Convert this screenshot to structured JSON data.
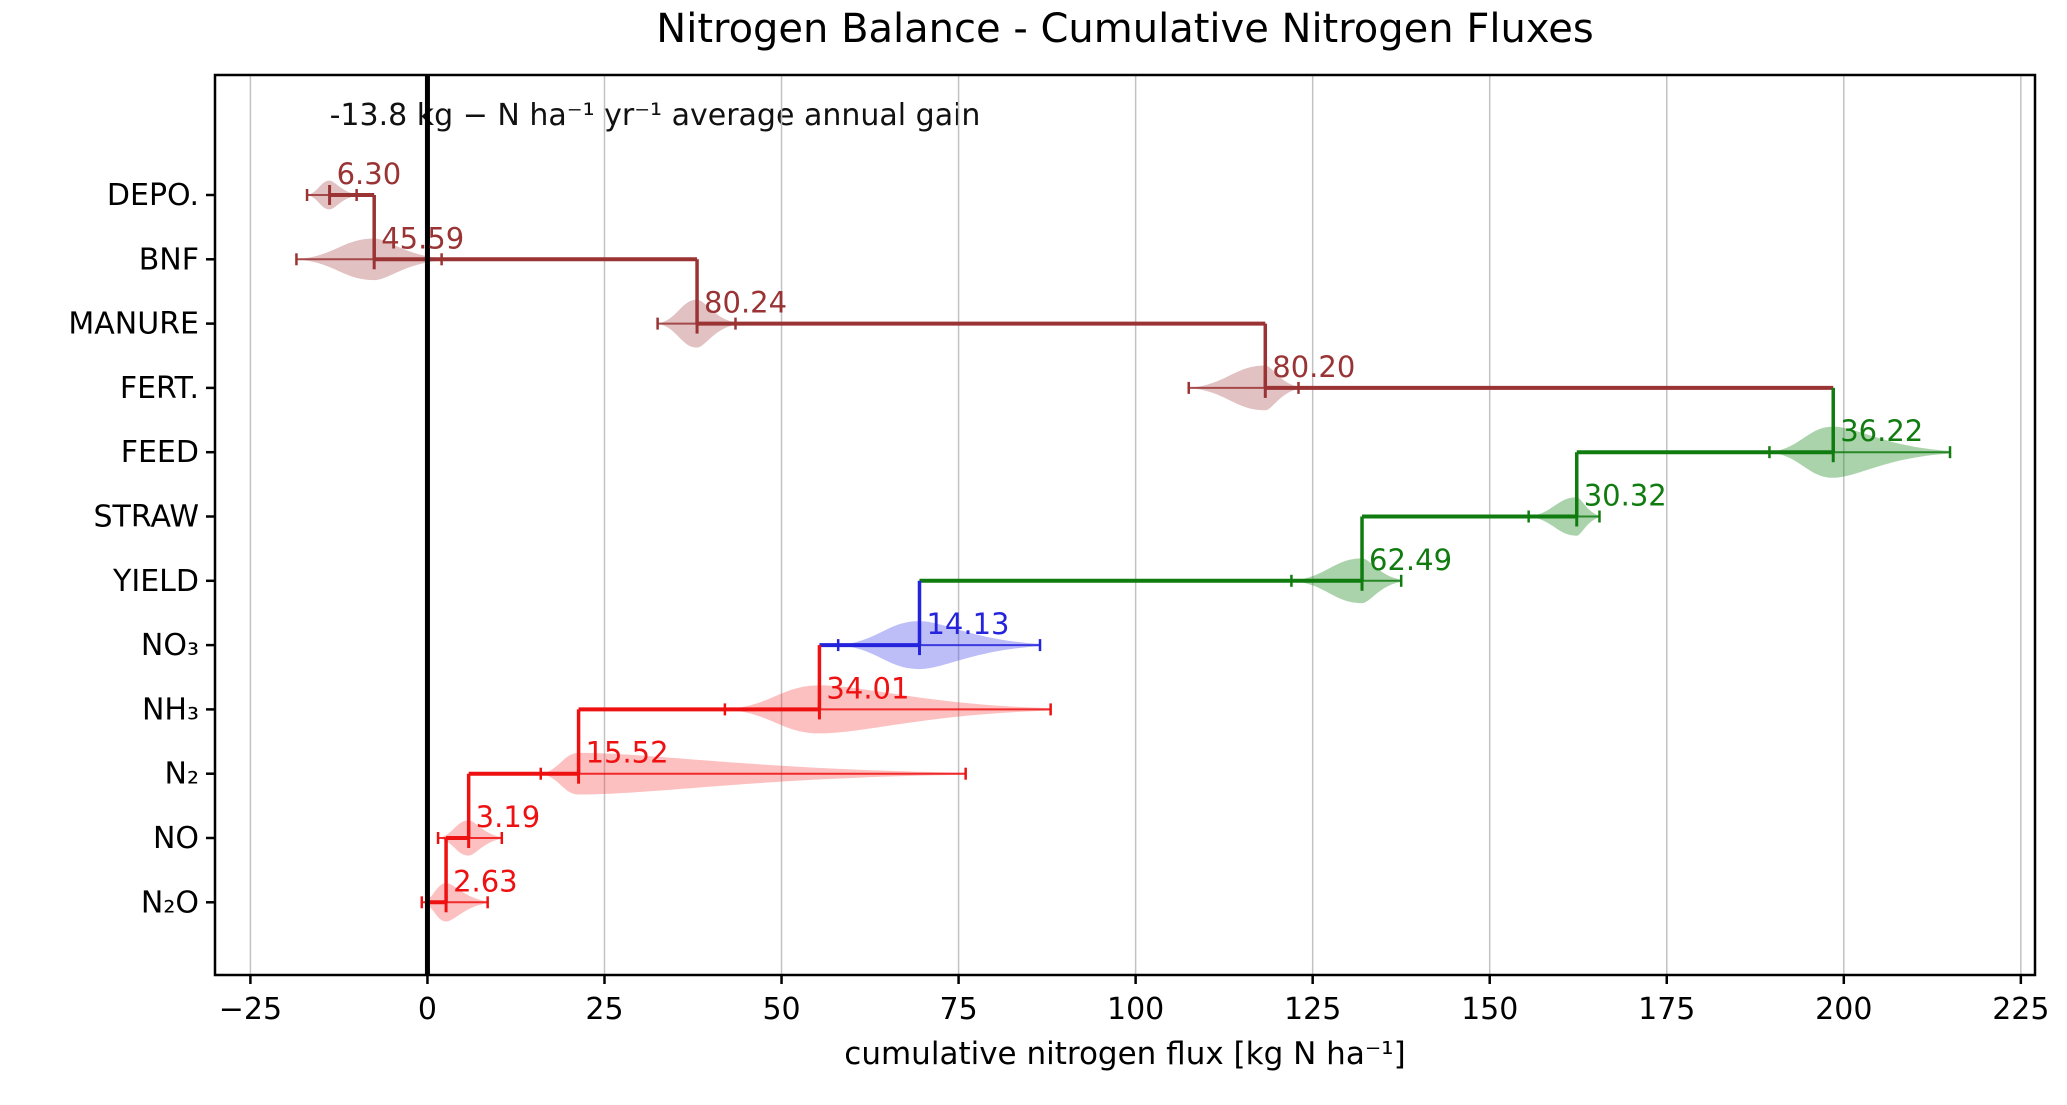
{
  "chart_data": {
    "type": "waterfall",
    "title": "Nitrogen Balance - Cumulative Nitrogen Fluxes",
    "annotation": "-13.8 kg − N ha⁻¹ yr⁻¹ average annual gain",
    "xlabel": "cumulative nitrogen flux [kg N ha⁻¹]",
    "ylabel": "",
    "grid": true,
    "legend": "none",
    "average_annual_gain": -13.8,
    "start_value": -13.82,
    "end_value": 0.0,
    "zero_line": 0,
    "x_axis": {
      "lim": [
        -30,
        227
      ],
      "ticks": [
        -25,
        0,
        25,
        50,
        75,
        100,
        125,
        150,
        175,
        200,
        225
      ],
      "tick_labels": [
        "−25",
        "0",
        "25",
        "50",
        "75",
        "100",
        "125",
        "150",
        "175",
        "200",
        "225"
      ]
    },
    "colors": {
      "input": "#9a3334",
      "input_fill": "rgba(154,51,52,0.30)",
      "output": "#107c10",
      "output_fill": "rgba(34,139,34,0.38)",
      "leaching": "#2424dd",
      "leaching_fill": "rgba(90,90,235,0.40)",
      "loss": "#ee1111",
      "loss_fill": "rgba(250,60,60,0.32)",
      "zero_line": "#000000",
      "axis": "#000000",
      "grid": "#c2c2c2"
    },
    "rows": [
      {
        "id": "depo",
        "category": "DEPO.",
        "flux": 6.3,
        "label": "6.30",
        "group": "input",
        "start": -13.82,
        "end": -7.52,
        "violin": {
          "lo": -17.0,
          "hi": -10.0,
          "h": 9
        }
      },
      {
        "id": "bnf",
        "category": "BNF",
        "flux": 45.59,
        "label": "45.59",
        "group": "input",
        "start": -7.52,
        "end": 38.07,
        "violin": {
          "lo": -18.5,
          "hi": 2.0,
          "h": 13
        }
      },
      {
        "id": "manure",
        "category": "MANURE",
        "flux": 80.24,
        "label": "80.24",
        "group": "input",
        "start": 38.07,
        "end": 118.31,
        "violin": {
          "lo": 32.5,
          "hi": 43.5,
          "h": 15
        }
      },
      {
        "id": "fert",
        "category": "FERT.",
        "flux": 80.2,
        "label": "80.20",
        "group": "input",
        "start": 118.31,
        "end": 198.51,
        "violin": {
          "lo": 107.5,
          "hi": 123.0,
          "h": 14
        }
      },
      {
        "id": "feed",
        "category": "FEED",
        "flux": 36.22,
        "label": "36.22",
        "group": "output",
        "start": 198.51,
        "end": 162.29,
        "violin": {
          "lo": 189.5,
          "hi": 215.0,
          "h": 16
        }
      },
      {
        "id": "straw",
        "category": "STRAW",
        "flux": 30.32,
        "label": "30.32",
        "group": "output",
        "start": 162.29,
        "end": 131.97,
        "violin": {
          "lo": 155.5,
          "hi": 165.5,
          "h": 12
        }
      },
      {
        "id": "yield",
        "category": "YIELD",
        "flux": 62.49,
        "label": "62.49",
        "group": "output",
        "start": 131.97,
        "end": 69.48,
        "violin": {
          "lo": 122.0,
          "hi": 137.5,
          "h": 14
        }
      },
      {
        "id": "no3",
        "category": "NO₃",
        "flux": 14.13,
        "label": "14.13",
        "group": "leaching",
        "start": 69.48,
        "end": 55.35,
        "violin": {
          "lo": 58.0,
          "hi": 86.5,
          "h": 15
        }
      },
      {
        "id": "nh3",
        "category": "NH₃",
        "flux": 34.01,
        "label": "34.01",
        "group": "loss",
        "start": 55.35,
        "end": 21.34,
        "violin": {
          "lo": 42.0,
          "hi": 88.0,
          "h": 15
        }
      },
      {
        "id": "n2",
        "category": "N₂",
        "flux": 15.52,
        "label": "15.52",
        "group": "loss",
        "start": 21.34,
        "end": 5.82,
        "violin": {
          "lo": 16.0,
          "hi": 76.0,
          "h": 13
        }
      },
      {
        "id": "no",
        "category": "NO",
        "flux": 3.19,
        "label": "3.19",
        "group": "loss",
        "start": 5.82,
        "end": 2.63,
        "violin": {
          "lo": 1.5,
          "hi": 10.5,
          "h": 11
        }
      },
      {
        "id": "n2o",
        "category": "N₂O",
        "flux": 2.63,
        "label": "2.63",
        "group": "loss",
        "start": 2.63,
        "end": 0.0,
        "violin": {
          "lo": -0.8,
          "hi": 8.5,
          "h": 12
        }
      }
    ]
  }
}
